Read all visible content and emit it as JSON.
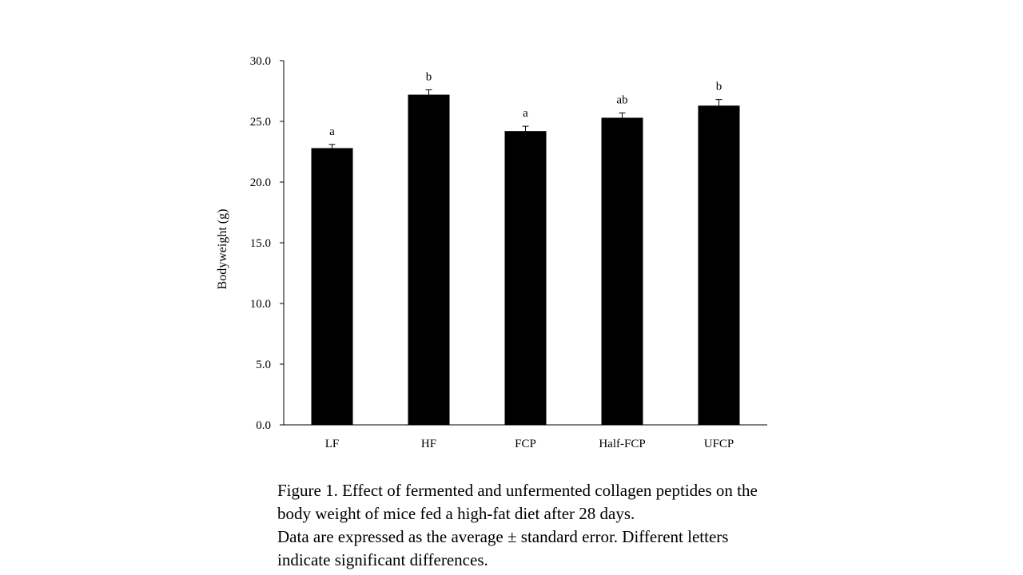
{
  "chart_data": {
    "type": "bar",
    "categories": [
      "LF",
      "HF",
      "FCP",
      "Half-FCP",
      "UFCP"
    ],
    "values": [
      22.8,
      27.2,
      24.2,
      25.3,
      26.3
    ],
    "errors": [
      0.3,
      0.4,
      0.4,
      0.4,
      0.5
    ],
    "significance": [
      "a",
      "b",
      "a",
      "ab",
      "b"
    ],
    "ylabel": "Bodyweight  (g)",
    "xlabel": "",
    "ylim": [
      0,
      30
    ],
    "yticks": [
      "0.0",
      "5.0",
      "10.0",
      "15.0",
      "20.0",
      "25.0",
      "30.0"
    ],
    "bar_color": "#000000",
    "grid": false
  },
  "caption": {
    "line1": "Figure  1. Effect of fermented and unfermented collagen peptides on the",
    "line2": "body weight of mice fed a high-fat diet after 28 days.",
    "line3": "Data are expressed as the average ± standard error. Different letters",
    "line4": "indicate significant differences."
  }
}
